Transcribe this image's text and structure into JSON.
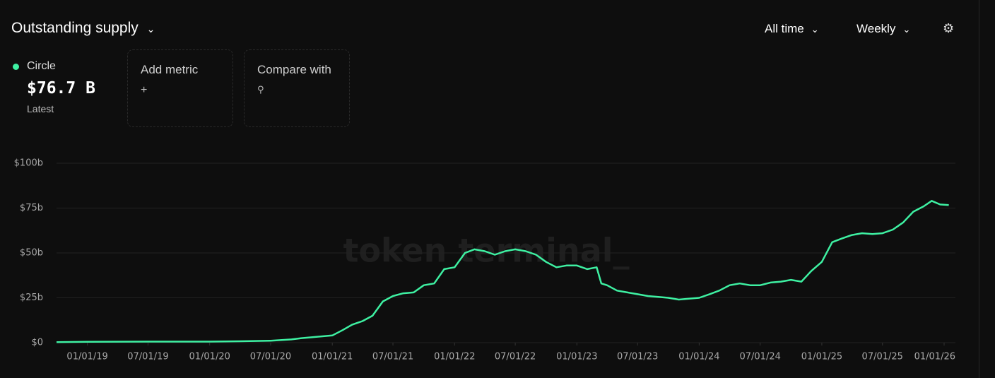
{
  "ui": {
    "title": "Outstanding supply",
    "range": "All time",
    "interval": "Weekly",
    "add_metric": "Add metric",
    "compare_with": "Compare with"
  },
  "chart_data": {
    "type": "line",
    "watermark": "token terminal_",
    "summary": {
      "value": 76.7,
      "value_label": "$76.7 B",
      "label": "Latest"
    },
    "x": [
      "2018-10-01",
      "2019-01-01",
      "2019-07-01",
      "2020-01-01",
      "2020-04-01",
      "2020-07-01",
      "2020-09-01",
      "2020-10-01",
      "2021-01-01",
      "2021-02-01",
      "2021-03-01",
      "2021-04-01",
      "2021-05-01",
      "2021-06-01",
      "2021-07-01",
      "2021-08-01",
      "2021-09-01",
      "2021-10-01",
      "2021-11-01",
      "2021-12-01",
      "2022-01-01",
      "2022-02-01",
      "2022-03-01",
      "2022-04-01",
      "2022-05-01",
      "2022-06-01",
      "2022-07-01",
      "2022-08-01",
      "2022-09-01",
      "2022-10-01",
      "2022-11-01",
      "2022-12-01",
      "2023-01-01",
      "2023-02-01",
      "2023-03-01",
      "2023-03-15",
      "2023-04-01",
      "2023-05-01",
      "2023-06-01",
      "2023-07-01",
      "2023-08-01",
      "2023-09-01",
      "2023-10-01",
      "2023-11-01",
      "2023-12-01",
      "2024-01-01",
      "2024-02-01",
      "2024-03-01",
      "2024-04-01",
      "2024-05-01",
      "2024-06-01",
      "2024-07-01",
      "2024-08-01",
      "2024-09-01",
      "2024-10-01",
      "2024-11-01",
      "2024-12-01",
      "2025-01-01",
      "2025-02-01",
      "2025-03-01",
      "2025-04-01",
      "2025-05-01",
      "2025-06-01",
      "2025-07-01",
      "2025-08-01",
      "2025-09-01",
      "2025-10-01",
      "2025-11-01",
      "2025-11-25",
      "2025-12-20",
      "2026-01-15"
    ],
    "series": [
      {
        "name": "Circle",
        "color": "#3ef0a2",
        "values": [
          0.3,
          0.5,
          0.6,
          0.6,
          0.8,
          1.1,
          1.8,
          2.5,
          4,
          7,
          10,
          12,
          15,
          23,
          26,
          27.5,
          28,
          32,
          33,
          41,
          42,
          50,
          52,
          51,
          49,
          51,
          52,
          51,
          49,
          45,
          42,
          43,
          43,
          41,
          42,
          33,
          32,
          29,
          28,
          27,
          26,
          25.5,
          25,
          24,
          24.5,
          25,
          27,
          29,
          32,
          33,
          32,
          32,
          33.5,
          34,
          35,
          34,
          40,
          45,
          56,
          58,
          60,
          61,
          60.5,
          61,
          63,
          67,
          73,
          76,
          79,
          77,
          76.7
        ]
      }
    ],
    "xlim": [
      "2018-10-01",
      "2026-01-20"
    ],
    "xticks": [
      {
        "value": "2019-01-01",
        "label": "01/01/19"
      },
      {
        "value": "2019-07-01",
        "label": "07/01/19"
      },
      {
        "value": "2020-01-01",
        "label": "01/01/20"
      },
      {
        "value": "2020-07-01",
        "label": "07/01/20"
      },
      {
        "value": "2021-01-01",
        "label": "01/01/21"
      },
      {
        "value": "2021-07-01",
        "label": "07/01/21"
      },
      {
        "value": "2022-01-01",
        "label": "01/01/22"
      },
      {
        "value": "2022-07-01",
        "label": "07/01/22"
      },
      {
        "value": "2023-01-01",
        "label": "01/01/23"
      },
      {
        "value": "2023-07-01",
        "label": "07/01/23"
      },
      {
        "value": "2024-01-01",
        "label": "01/01/24"
      },
      {
        "value": "2024-07-01",
        "label": "07/01/24"
      },
      {
        "value": "2025-01-01",
        "label": "01/01/25"
      },
      {
        "value": "2025-07-01",
        "label": "07/01/25"
      },
      {
        "value": "2026-01-01",
        "label": "01/01/26"
      }
    ],
    "ylim": [
      0,
      100
    ],
    "yticks": [
      {
        "value": 0,
        "label": "$0"
      },
      {
        "value": 25,
        "label": "$25b"
      },
      {
        "value": 50,
        "label": "$50b"
      },
      {
        "value": 75,
        "label": "$75b"
      },
      {
        "value": 100,
        "label": "$100b"
      }
    ],
    "grid": true
  }
}
